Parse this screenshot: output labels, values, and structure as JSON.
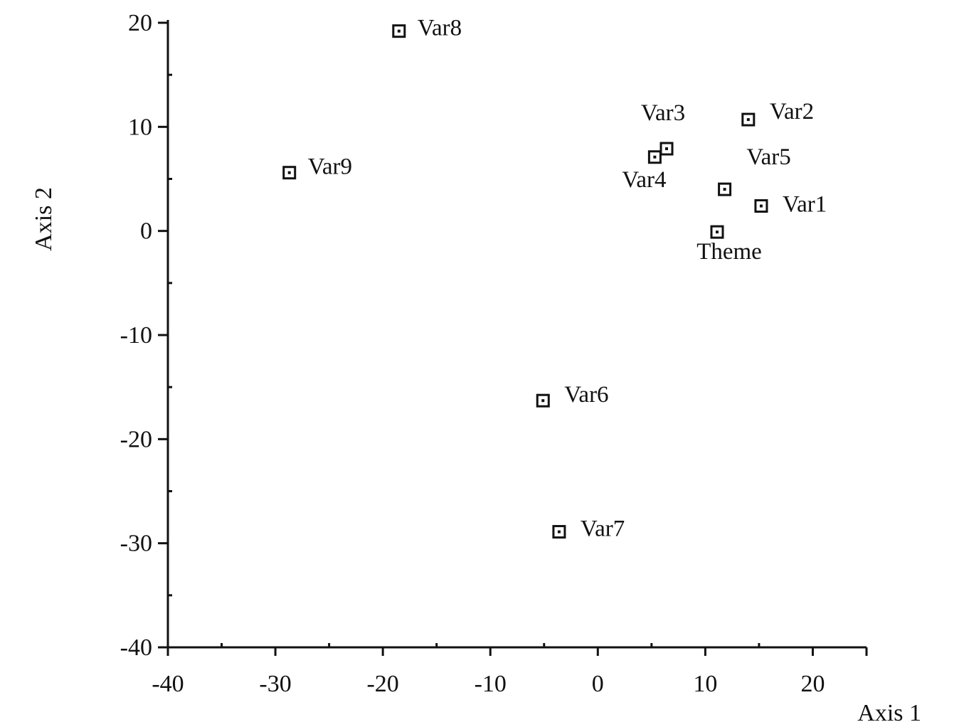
{
  "chart_data": {
    "type": "scatter",
    "title": "",
    "xlabel": "Axis 1",
    "ylabel": "Axis 2",
    "xlim": [
      -40,
      25
    ],
    "ylim": [
      -40,
      20
    ],
    "grid": false,
    "x_ticks": [
      -40,
      -30,
      -20,
      -10,
      0,
      10,
      20
    ],
    "y_ticks": [
      -40,
      -30,
      -20,
      -10,
      0,
      10,
      20
    ],
    "x_tick_labels": [
      "-40",
      "-30",
      "-20",
      "-10",
      "0",
      "10",
      "20"
    ],
    "y_tick_labels": [
      "-40",
      "-30",
      "-20",
      "-10",
      "0",
      "10",
      "20"
    ],
    "marker": "square-with-dot",
    "marker_color": "#111111",
    "points": [
      {
        "label": "Var1",
        "x": 15.2,
        "y": 2.4
      },
      {
        "label": "Var2",
        "x": 14.0,
        "y": 10.7
      },
      {
        "label": "Var3",
        "x": 6.4,
        "y": 7.9
      },
      {
        "label": "Var4",
        "x": 5.3,
        "y": 7.1
      },
      {
        "label": "Var5",
        "x": 11.8,
        "y": 4.0
      },
      {
        "label": "Var6",
        "x": -5.1,
        "y": -16.3
      },
      {
        "label": "Var7",
        "x": -3.6,
        "y": -28.9
      },
      {
        "label": "Var8",
        "x": -18.5,
        "y": 19.2
      },
      {
        "label": "Var9",
        "x": -28.7,
        "y": 5.6
      },
      {
        "label": "Theme",
        "x": 11.1,
        "y": -0.1
      }
    ]
  }
}
